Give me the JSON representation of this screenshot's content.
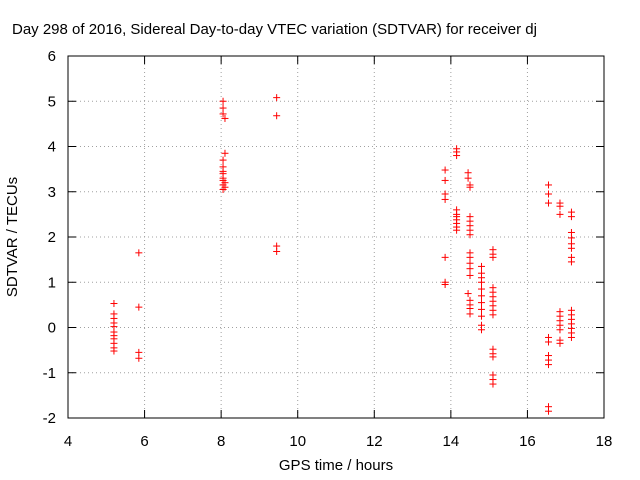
{
  "chart_data": {
    "type": "scatter",
    "title": "Day 298 of 2016, Sidereal Day-to-day VTEC variation (SDTVAR) for receiver dj",
    "xlabel": "GPS time / hours",
    "ylabel": "SDTVAR / TECUs",
    "xlim": [
      4,
      18
    ],
    "ylim": [
      -2,
      6
    ],
    "xticks": [
      "4",
      "6",
      "8",
      "10",
      "12",
      "14",
      "16",
      "18"
    ],
    "yticks": [
      "-2",
      "-1",
      "0",
      "1",
      "2",
      "3",
      "4",
      "5",
      "6"
    ],
    "grid": true,
    "series": [
      {
        "name": "SDTVAR",
        "color": "#ff0000",
        "marker": "plus",
        "points": [
          [
            5.2,
            0.53
          ],
          [
            5.2,
            0.3
          ],
          [
            5.2,
            0.2
          ],
          [
            5.2,
            0.1
          ],
          [
            5.2,
            0.02
          ],
          [
            5.2,
            -0.1
          ],
          [
            5.2,
            -0.18
          ],
          [
            5.2,
            -0.25
          ],
          [
            5.2,
            -0.35
          ],
          [
            5.2,
            -0.45
          ],
          [
            5.2,
            -0.52
          ],
          [
            5.85,
            1.65
          ],
          [
            5.85,
            0.45
          ],
          [
            5.85,
            -0.55
          ],
          [
            5.85,
            -0.68
          ],
          [
            8.05,
            5.0
          ],
          [
            8.05,
            4.85
          ],
          [
            8.05,
            4.72
          ],
          [
            8.1,
            4.62
          ],
          [
            8.1,
            3.85
          ],
          [
            8.05,
            3.7
          ],
          [
            8.05,
            3.55
          ],
          [
            8.05,
            3.45
          ],
          [
            8.05,
            3.4
          ],
          [
            8.05,
            3.3
          ],
          [
            8.05,
            3.25
          ],
          [
            8.1,
            3.2
          ],
          [
            8.05,
            3.15
          ],
          [
            8.1,
            3.1
          ],
          [
            8.05,
            3.05
          ],
          [
            9.45,
            5.08
          ],
          [
            9.45,
            4.68
          ],
          [
            9.45,
            1.8
          ],
          [
            9.45,
            1.68
          ],
          [
            13.85,
            3.48
          ],
          [
            13.85,
            3.25
          ],
          [
            13.85,
            2.95
          ],
          [
            13.85,
            2.83
          ],
          [
            13.85,
            1.55
          ],
          [
            13.85,
            1.0
          ],
          [
            13.85,
            0.95
          ],
          [
            14.15,
            3.95
          ],
          [
            14.15,
            3.88
          ],
          [
            14.15,
            3.8
          ],
          [
            14.15,
            2.6
          ],
          [
            14.15,
            2.5
          ],
          [
            14.15,
            2.45
          ],
          [
            14.15,
            2.38
          ],
          [
            14.15,
            2.3
          ],
          [
            14.15,
            2.22
          ],
          [
            14.15,
            2.15
          ],
          [
            14.45,
            3.42
          ],
          [
            14.45,
            3.3
          ],
          [
            14.5,
            3.15
          ],
          [
            14.5,
            3.1
          ],
          [
            14.5,
            2.45
          ],
          [
            14.5,
            2.35
          ],
          [
            14.5,
            2.25
          ],
          [
            14.5,
            2.15
          ],
          [
            14.5,
            2.05
          ],
          [
            14.5,
            1.65
          ],
          [
            14.5,
            1.55
          ],
          [
            14.5,
            1.42
          ],
          [
            14.5,
            1.3
          ],
          [
            14.5,
            1.15
          ],
          [
            14.45,
            0.75
          ],
          [
            14.5,
            0.6
          ],
          [
            14.5,
            0.5
          ],
          [
            14.5,
            0.42
          ],
          [
            14.5,
            0.3
          ],
          [
            14.8,
            1.35
          ],
          [
            14.8,
            1.2
          ],
          [
            14.8,
            1.1
          ],
          [
            14.8,
            1.0
          ],
          [
            14.8,
            0.85
          ],
          [
            14.8,
            0.7
          ],
          [
            14.8,
            0.55
          ],
          [
            14.8,
            0.4
          ],
          [
            14.8,
            0.25
          ],
          [
            14.8,
            0.05
          ],
          [
            14.8,
            -0.05
          ],
          [
            15.1,
            1.72
          ],
          [
            15.1,
            1.62
          ],
          [
            15.1,
            1.55
          ],
          [
            15.1,
            0.88
          ],
          [
            15.1,
            0.78
          ],
          [
            15.1,
            0.68
          ],
          [
            15.1,
            0.58
          ],
          [
            15.1,
            0.48
          ],
          [
            15.1,
            0.38
          ],
          [
            15.1,
            0.28
          ],
          [
            15.1,
            -0.48
          ],
          [
            15.1,
            -0.58
          ],
          [
            15.1,
            -0.65
          ],
          [
            15.1,
            -1.05
          ],
          [
            15.1,
            -1.15
          ],
          [
            15.1,
            -1.25
          ],
          [
            16.55,
            3.15
          ],
          [
            16.55,
            2.95
          ],
          [
            16.55,
            2.75
          ],
          [
            16.55,
            -0.22
          ],
          [
            16.55,
            -0.32
          ],
          [
            16.55,
            -0.62
          ],
          [
            16.55,
            -0.72
          ],
          [
            16.55,
            -0.82
          ],
          [
            16.55,
            -1.75
          ],
          [
            16.55,
            -1.85
          ],
          [
            16.85,
            2.75
          ],
          [
            16.85,
            2.68
          ],
          [
            16.85,
            2.5
          ],
          [
            16.85,
            0.35
          ],
          [
            16.85,
            0.25
          ],
          [
            16.85,
            0.15
          ],
          [
            16.85,
            0.05
          ],
          [
            16.85,
            -0.05
          ],
          [
            16.85,
            -0.28
          ],
          [
            16.85,
            -0.35
          ],
          [
            17.15,
            2.55
          ],
          [
            17.15,
            2.45
          ],
          [
            17.15,
            2.1
          ],
          [
            17.15,
            1.98
          ],
          [
            17.15,
            1.85
          ],
          [
            17.15,
            1.75
          ],
          [
            17.15,
            1.55
          ],
          [
            17.15,
            1.45
          ],
          [
            17.15,
            0.38
          ],
          [
            17.15,
            0.28
          ],
          [
            17.15,
            0.18
          ],
          [
            17.15,
            0.08
          ],
          [
            17.15,
            -0.02
          ],
          [
            17.15,
            -0.12
          ],
          [
            17.15,
            -0.22
          ]
        ]
      }
    ]
  }
}
